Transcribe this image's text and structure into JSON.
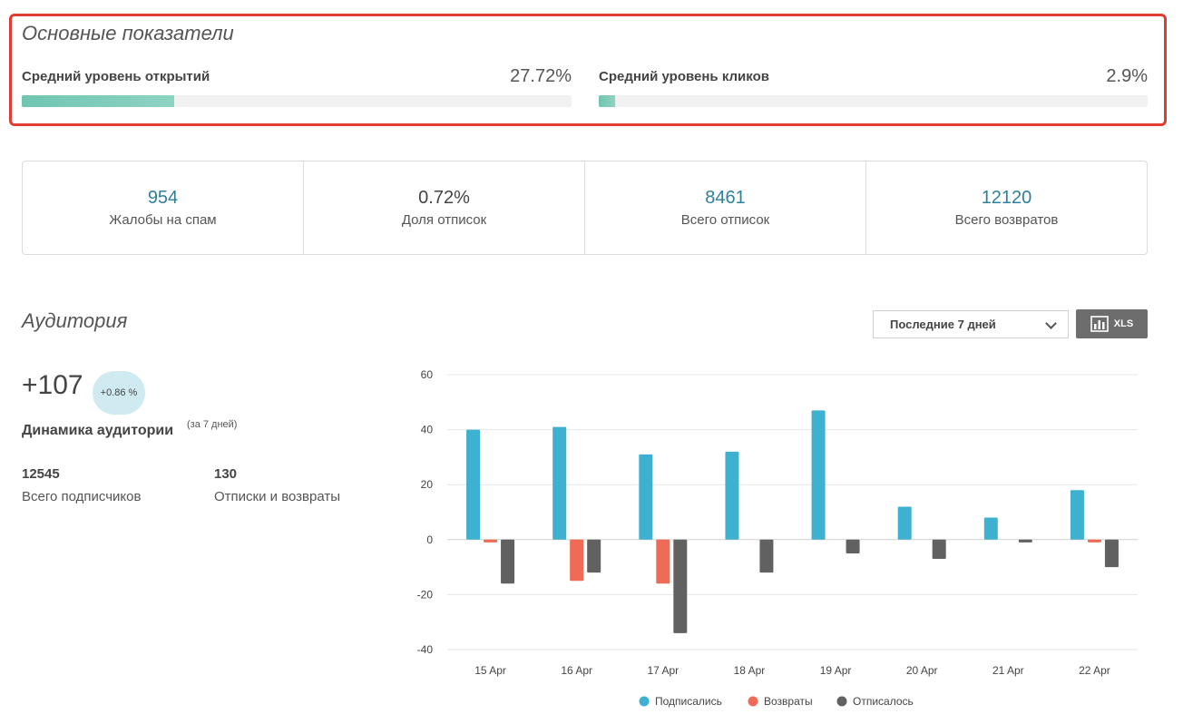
{
  "kpi": {
    "title": "Основные показатели",
    "open_rate": {
      "label": "Средний уровень открытий",
      "value": "27.72%",
      "fraction": 0.2772
    },
    "click_rate": {
      "label": "Средний уровень кликов",
      "value": "2.9%",
      "fraction": 0.029
    }
  },
  "stats": [
    {
      "value": "954",
      "label": "Жалобы на спам"
    },
    {
      "value": "0.72%",
      "label": "Доля отписок"
    },
    {
      "value": "8461",
      "label": "Всего отписок"
    },
    {
      "value": "12120",
      "label": "Всего возвратов"
    }
  ],
  "audience": {
    "title": "Аудитория",
    "growth": "+107",
    "growth_badge": "+0.86 %",
    "dynamics_label": "Динамика аудитории",
    "dynamics_note": "(за 7 дней)",
    "total_subscribers_value": "12545",
    "total_subscribers_label": "Всего подписчиков",
    "unsub_returns_value": "130",
    "unsub_returns_label": "Отписки и возвраты"
  },
  "controls": {
    "period_selected": "Последние 7 дней",
    "export_label": "XLS",
    "export_icon": "chart-icon"
  },
  "colors": {
    "accent_red": "#e03c31",
    "progress": "#7fcdb9",
    "subscribed": "#3fb1d0",
    "returns": "#ef6b55",
    "unsubscribed": "#616161"
  },
  "chart_data": {
    "type": "bar",
    "categories": [
      "15 Apr",
      "16 Apr",
      "17 Apr",
      "18 Apr",
      "19 Apr",
      "20 Apr",
      "21 Apr",
      "22 Apr"
    ],
    "series": [
      {
        "name": "Подписались",
        "color": "#3fb1d0",
        "values": [
          40,
          41,
          31,
          32,
          47,
          12,
          8,
          18
        ]
      },
      {
        "name": "Возвраты",
        "color": "#ef6b55",
        "values": [
          -1,
          -15,
          -16,
          0,
          0,
          0,
          0,
          -1
        ]
      },
      {
        "name": "Отписалось",
        "color": "#616161",
        "values": [
          -16,
          -12,
          -34,
          -12,
          -5,
          -7,
          -1,
          -10
        ]
      }
    ],
    "ylim": [
      -40,
      60
    ],
    "yticks": [
      60,
      40,
      20,
      0,
      -20,
      -40
    ],
    "grid": true,
    "legend": "bottom"
  }
}
